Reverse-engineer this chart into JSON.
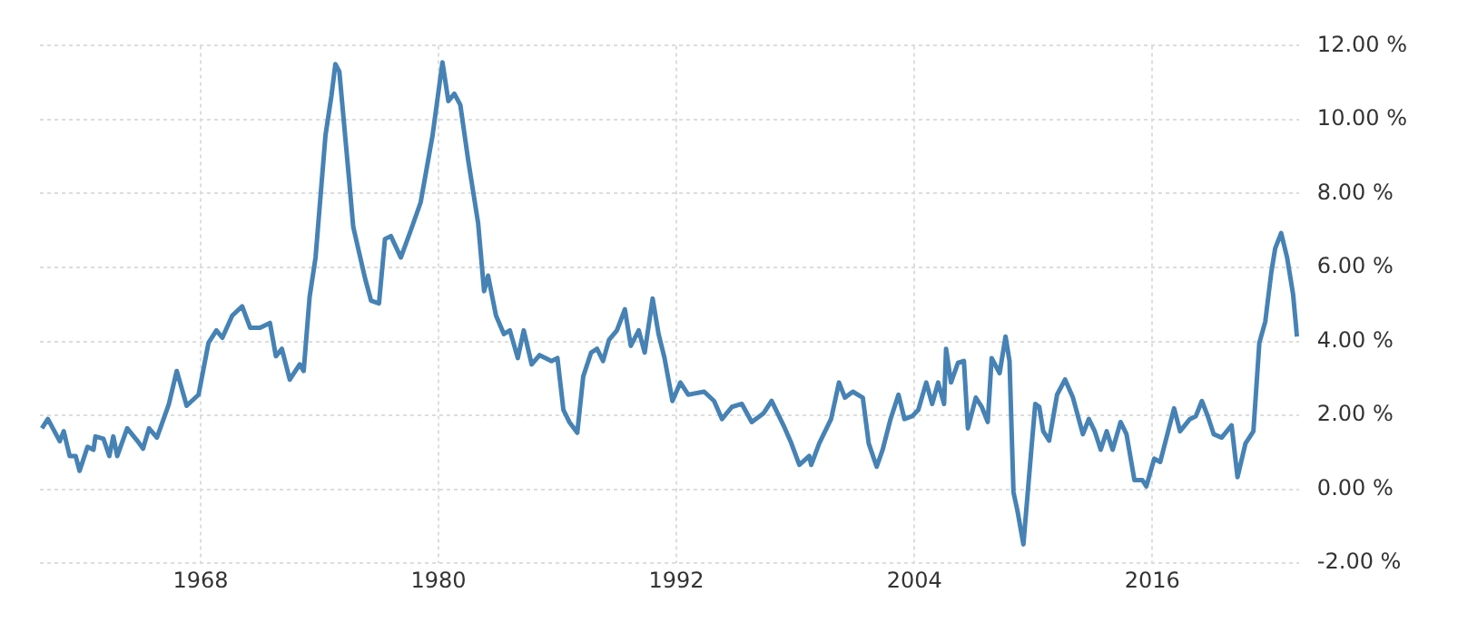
{
  "chart_data": {
    "type": "line",
    "xlim": [
      1959.9,
      2023.4
    ],
    "xticks": [
      1968,
      1980,
      1992,
      2004,
      2016
    ],
    "ylim": [
      -2,
      12
    ],
    "yticks": [
      {
        "value": -2,
        "label": "-2.00 %"
      },
      {
        "value": 0,
        "label": "0.00 %"
      },
      {
        "value": 2,
        "label": "2.00 %"
      },
      {
        "value": 4,
        "label": "4.00 %"
      },
      {
        "value": 6,
        "label": "6.00 %"
      },
      {
        "value": 8,
        "label": "8.00 %"
      },
      {
        "value": 10,
        "label": "10.00 %"
      },
      {
        "value": 12,
        "label": "12.00 %"
      }
    ],
    "grid": true,
    "marker": "none",
    "line_style": "solid",
    "series": [
      {
        "color": "#4682b4",
        "x": [
          1960.0,
          1960.3,
          1960.6,
          1960.9,
          1961.1,
          1961.4,
          1961.7,
          1961.9,
          1962.3,
          1962.6,
          1962.7,
          1963.1,
          1963.4,
          1963.6,
          1963.8,
          1964.3,
          1964.8,
          1965.1,
          1965.4,
          1965.8,
          1966.4,
          1966.8,
          1967.3,
          1967.9,
          1968.4,
          1968.8,
          1969.1,
          1969.6,
          1970.1,
          1970.5,
          1971.0,
          1971.5,
          1971.8,
          1972.1,
          1972.5,
          1973.0,
          1973.2,
          1973.5,
          1973.8,
          1974.3,
          1974.6,
          1974.8,
          1975.0,
          1975.5,
          1975.7,
          1976.3,
          1976.6,
          1977.0,
          1977.3,
          1977.6,
          1978.1,
          1978.6,
          1979.1,
          1979.7,
          1980.2,
          1980.5,
          1980.8,
          1981.1,
          1981.5,
          1982.0,
          1982.3,
          1982.5,
          1982.9,
          1983.3,
          1983.6,
          1984.0,
          1984.3,
          1984.7,
          1985.1,
          1985.7,
          1986.0,
          1986.3,
          1986.6,
          1987.0,
          1987.3,
          1987.7,
          1988.0,
          1988.3,
          1988.6,
          1989.0,
          1989.4,
          1989.7,
          1990.1,
          1990.4,
          1990.8,
          1991.1,
          1991.4,
          1991.8,
          1992.2,
          1992.6,
          1993.4,
          1993.9,
          1994.3,
          1994.8,
          1995.3,
          1995.8,
          1996.4,
          1996.8,
          1997.4,
          1997.8,
          1998.2,
          1998.7,
          1998.8,
          1999.2,
          1999.8,
          2000.2,
          2000.5,
          2000.9,
          2001.4,
          2001.7,
          2002.1,
          2002.4,
          2002.8,
          2003.2,
          2003.5,
          2003.9,
          2004.2,
          2004.6,
          2004.9,
          2005.2,
          2005.5,
          2005.6,
          2005.85,
          2006.2,
          2006.5,
          2006.7,
          2007.1,
          2007.4,
          2007.7,
          2007.9,
          2008.3,
          2008.6,
          2008.8,
          2009.0,
          2009.2,
          2009.5,
          2009.9,
          2010.1,
          2010.3,
          2010.5,
          2010.8,
          2011.2,
          2011.6,
          2012.0,
          2012.5,
          2012.8,
          2013.1,
          2013.4,
          2013.7,
          2014.0,
          2014.4,
          2014.7,
          2015.1,
          2015.5,
          2015.7,
          2016.1,
          2016.4,
          2016.8,
          2017.1,
          2017.4,
          2017.9,
          2018.2,
          2018.5,
          2018.8,
          2019.1,
          2019.5,
          2020.0,
          2020.3,
          2020.7,
          2021.1,
          2021.4,
          2021.7,
          2022.0,
          2022.2,
          2022.5,
          2022.8,
          2023.1,
          2023.3
        ],
        "values": [
          1.65,
          1.9,
          1.6,
          1.3,
          1.57,
          0.9,
          0.9,
          0.5,
          1.15,
          1.07,
          1.43,
          1.37,
          0.9,
          1.43,
          0.9,
          1.65,
          1.32,
          1.1,
          1.65,
          1.4,
          2.3,
          3.2,
          2.26,
          2.56,
          3.96,
          4.3,
          4.1,
          4.7,
          4.95,
          4.37,
          4.37,
          4.5,
          3.6,
          3.8,
          2.97,
          3.38,
          3.2,
          5.2,
          6.27,
          9.57,
          10.64,
          11.5,
          11.3,
          8.33,
          7.1,
          5.7,
          5.1,
          5.03,
          6.77,
          6.85,
          6.27,
          7.0,
          7.76,
          9.57,
          11.55,
          10.5,
          10.7,
          10.4,
          8.9,
          7.2,
          5.36,
          5.78,
          4.7,
          4.2,
          4.3,
          3.55,
          4.3,
          3.38,
          3.63,
          3.47,
          3.55,
          2.15,
          1.82,
          1.53,
          3.05,
          3.7,
          3.8,
          3.47,
          4.04,
          4.3,
          4.87,
          3.88,
          4.3,
          3.7,
          5.16,
          4.2,
          3.55,
          2.39,
          2.89,
          2.56,
          2.64,
          2.39,
          1.9,
          2.23,
          2.31,
          1.82,
          2.06,
          2.39,
          1.73,
          1.24,
          0.66,
          0.9,
          0.66,
          1.24,
          1.9,
          2.89,
          2.48,
          2.64,
          2.48,
          1.24,
          0.61,
          1.07,
          1.9,
          2.56,
          1.9,
          1.98,
          2.15,
          2.89,
          2.31,
          2.89,
          2.31,
          3.8,
          2.89,
          3.42,
          3.47,
          1.65,
          2.48,
          2.23,
          1.82,
          3.55,
          3.14,
          4.13,
          3.47,
          -0.08,
          -0.58,
          -1.49,
          1.07,
          2.31,
          2.23,
          1.57,
          1.32,
          2.56,
          2.97,
          2.48,
          1.49,
          1.9,
          1.57,
          1.07,
          1.57,
          1.07,
          1.82,
          1.49,
          0.25,
          0.25,
          0.08,
          0.83,
          0.74,
          1.57,
          2.19,
          1.57,
          1.9,
          1.98,
          2.39,
          1.98,
          1.49,
          1.4,
          1.73,
          0.33,
          1.24,
          1.57,
          3.96,
          4.54,
          5.86,
          6.52,
          6.93,
          6.27,
          5.28,
          4.13
        ]
      }
    ]
  }
}
